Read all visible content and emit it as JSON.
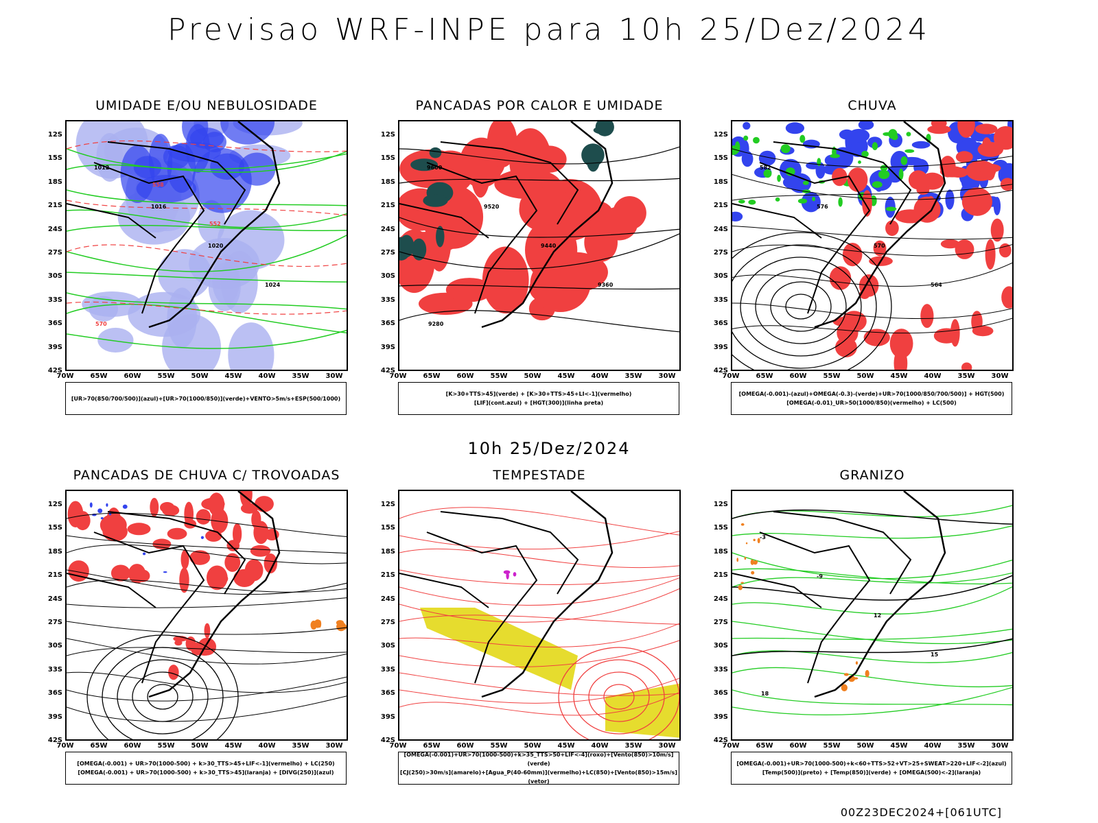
{
  "title": "Previsao WRF-INPE  para 10h 25/Dez/2024",
  "subtitle": "10h 25/Dez/2024",
  "footer": "00Z23DEC2024+[061UTC]",
  "colors": {
    "blue": "#3344ee",
    "lightblue": "#aab0f0",
    "green": "#22cc22",
    "red": "#f04040",
    "teal": "#1e4d4d",
    "yellow": "#e6dc2e",
    "orange": "#f08020"
  },
  "chart_data": {
    "type": "map",
    "lat_labels": [
      "12S",
      "15S",
      "18S",
      "21S",
      "24S",
      "27S",
      "30S",
      "33S",
      "36S",
      "39S",
      "42S"
    ],
    "lon_labels": [
      "70W",
      "65W",
      "60W",
      "55W",
      "50W",
      "45W",
      "40W",
      "35W",
      "30W"
    ],
    "panels": [
      {
        "title": "UMIDADE E/OU NEBULOSIDADE",
        "legend": [
          "[UR>70(850/700/500)](azul)+[UR>70(1000/850)](verde)+VENTO>5m/s+ESP(500/1000)"
        ],
        "labels": [
          "1012",
          "1016",
          "1020",
          "1024",
          "570",
          "558",
          "552"
        ]
      },
      {
        "title": "PANCADAS POR CALOR E UMIDADE",
        "legend": [
          "[K>30+TTS>45](verde) + [K>30+TTS>45+LI<-1](vermelho)",
          "[LIF](cont.azul) + [HGT(300)](linha preta)"
        ],
        "labels": [
          "9600",
          "9520",
          "9440",
          "9360",
          "9280"
        ]
      },
      {
        "title": "CHUVA",
        "legend": [
          "[OMEGA(-0.001)-(azul)+OMEGA(-0.3)-(verde)+UR>70(1000/850/700/500)] + HGT(500)",
          "[OMEGA(-0.01)_UR>50(1000/850)(vermelho) + LC(500)"
        ],
        "labels": [
          "582",
          "576",
          "570",
          "564"
        ]
      },
      {
        "title": "PANCADAS DE CHUVA C/ TROVOADAS",
        "legend": [
          "[OMEGA(-0.001) + UR>70(1000-500) + k>30_TTS>45+LIF<-1](vermelho) + LC(250)",
          "[OMEGA(-0.001) + UR>70(1000-500) + k>30_TTS>45](laranja) + [DIVG(250)](azul)"
        ],
        "labels": []
      },
      {
        "title": "TEMPESTADE",
        "legend": [
          "[OMEGA(-0.001)+UR>70(1000-500)+k>35_TTS>50+LIF<-4](roxo)+[Vento(850)>10m/s](verde)",
          "[CJ(250)>30m/s](amarelo)+[Agua_P(40-60mm)](vermelho)+LC(850)+[Vento(850)>15m/s](vetor)"
        ],
        "labels": []
      },
      {
        "title": "GRANIZO",
        "legend": [
          "[OMEGA(-0.001)+UR>70(1000-500)+k<60+TTS>52+VT>25+SWEAT>220+LIF<-2](azul)",
          "[Temp(500)](preto) + [Temp(850)](verde) + [OMEGA(500)<-2](laranja)"
        ],
        "labels": [
          "-3",
          "-9",
          "12",
          "15",
          "18"
        ]
      }
    ]
  }
}
